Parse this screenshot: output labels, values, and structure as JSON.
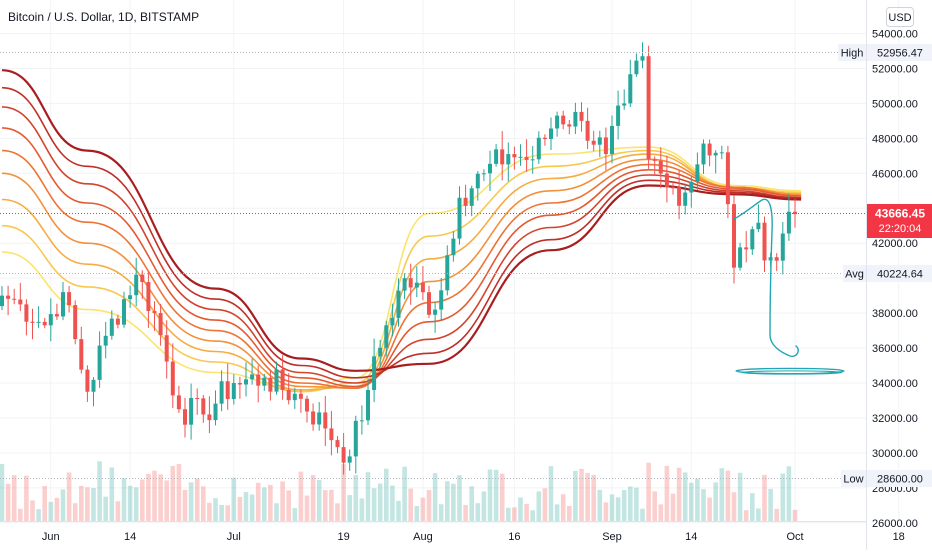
{
  "header": {
    "title": "Bitcoin / U.S. Dollar, 1D, BITSTAMP"
  },
  "currency_button": {
    "label": "USD"
  },
  "price_axis": {
    "ticks": [
      "54000.00",
      "52000.00",
      "50000.00",
      "48000.00",
      "46000.00",
      "44000.00",
      "42000.00",
      "40000.00",
      "38000.00",
      "36000.00",
      "34000.00",
      "32000.00",
      "30000.00",
      "28000.00",
      "26000.00"
    ]
  },
  "time_axis": {
    "labels": [
      "Jun",
      "14",
      "Jul",
      "19",
      "Aug",
      "16",
      "Sep",
      "14",
      "Oct",
      "18"
    ]
  },
  "markers": {
    "high": {
      "label": "High",
      "value": "52956.47"
    },
    "avg": {
      "label": "Avg",
      "value": "40224.64"
    },
    "low": {
      "label": "Low",
      "value": "28600.00"
    },
    "last": {
      "value": "43666.45",
      "countdown": "22:20:04"
    }
  },
  "colors": {
    "up": "#26a69a",
    "down": "#ef5350",
    "last_price": "#f23645",
    "drawing": "#22a6b3",
    "ribbon": [
      "#fbe46d",
      "#f8c84f",
      "#f6ac43",
      "#f3903b",
      "#ee7436",
      "#e45a32",
      "#d4432d",
      "#c02f27",
      "#a81d20"
    ]
  },
  "chart_data": {
    "type": "candlestick",
    "title": "Bitcoin / U.S. Dollar, 1D, BITSTAMP",
    "currency": "USD",
    "ylim": [
      25000,
      55000
    ],
    "x_range": [
      "2021-05-24",
      "2021-10-22"
    ],
    "x_tick_labels": [
      "Jun",
      "14",
      "Jul",
      "19",
      "Aug",
      "16",
      "Sep",
      "14",
      "Oct",
      "18"
    ],
    "high": 52956.47,
    "average": 40224.64,
    "low": 28600.0,
    "last_price": 43666.45,
    "countdown": "22:20:04",
    "price_anchors": [
      {
        "date": "2021-05-24",
        "close": 39000
      },
      {
        "date": "2021-05-27",
        "close": 38500
      },
      {
        "date": "2021-05-31",
        "close": 37300
      },
      {
        "date": "2021-06-03",
        "close": 39200
      },
      {
        "date": "2021-06-07",
        "close": 33500
      },
      {
        "date": "2021-06-10",
        "close": 36700
      },
      {
        "date": "2021-06-15",
        "close": 40200
      },
      {
        "date": "2021-06-18",
        "close": 38000
      },
      {
        "date": "2021-06-22",
        "close": 32500
      },
      {
        "date": "2021-06-26",
        "close": 32200
      },
      {
        "date": "2021-07-01",
        "close": 34000
      },
      {
        "date": "2021-07-06",
        "close": 34300
      },
      {
        "date": "2021-07-12",
        "close": 33100
      },
      {
        "date": "2021-07-16",
        "close": 31400
      },
      {
        "date": "2021-07-20",
        "close": 29800
      },
      {
        "date": "2021-07-23",
        "close": 33600
      },
      {
        "date": "2021-07-26",
        "close": 37300
      },
      {
        "date": "2021-07-29",
        "close": 40000
      },
      {
        "date": "2021-08-03",
        "close": 38200
      },
      {
        "date": "2021-08-07",
        "close": 44600
      },
      {
        "date": "2021-08-11",
        "close": 46000
      },
      {
        "date": "2021-08-15",
        "close": 47100
      },
      {
        "date": "2021-08-19",
        "close": 46800
      },
      {
        "date": "2021-08-23",
        "close": 49300
      },
      {
        "date": "2021-08-27",
        "close": 49000
      },
      {
        "date": "2021-08-31",
        "close": 47100
      },
      {
        "date": "2021-09-03",
        "close": 50000
      },
      {
        "date": "2021-09-06",
        "close": 52700
      },
      {
        "date": "2021-09-07",
        "close": 46800
      },
      {
        "date": "2021-09-10",
        "close": 45200
      },
      {
        "date": "2021-09-13",
        "close": 44900
      },
      {
        "date": "2021-09-16",
        "close": 47700
      },
      {
        "date": "2021-09-19",
        "close": 47200
      },
      {
        "date": "2021-09-21",
        "close": 40600
      },
      {
        "date": "2021-09-24",
        "close": 42800
      },
      {
        "date": "2021-09-28",
        "close": 41000
      },
      {
        "date": "2021-09-30",
        "close": 43800
      },
      {
        "date": "2021-10-01",
        "close": 43666
      }
    ],
    "series": [
      {
        "values": [
          41500,
          38200,
          34600,
          33600,
          34300,
          43700,
          47100,
          47500,
          45300,
          45000
        ]
      },
      {
        "values": [
          43000,
          39500,
          35200,
          33500,
          34000,
          42400,
          46400,
          47300,
          45200,
          44900
        ]
      },
      {
        "values": [
          44500,
          40800,
          35800,
          33600,
          33800,
          41100,
          45700,
          47100,
          45200,
          44800
        ]
      },
      {
        "values": [
          46000,
          42000,
          36400,
          33800,
          33700,
          39800,
          45000,
          46800,
          45200,
          44800
        ]
      },
      {
        "values": [
          47300,
          43200,
          37000,
          34000,
          33700,
          38600,
          44300,
          46500,
          45200,
          44700
        ]
      },
      {
        "values": [
          48600,
          44300,
          37600,
          34300,
          33800,
          37500,
          43600,
          46200,
          45100,
          44700
        ]
      },
      {
        "values": [
          49800,
          45400,
          38200,
          34600,
          34000,
          36500,
          42900,
          45900,
          45000,
          44600
        ]
      },
      {
        "values": [
          50900,
          46400,
          38800,
          35000,
          34300,
          35700,
          42200,
          45600,
          44900,
          44600
        ]
      },
      {
        "values": [
          51900,
          47300,
          39400,
          35400,
          34700,
          35100,
          41600,
          45300,
          44800,
          44500
        ]
      }
    ],
    "series_x": [
      "2021-05-24",
      "2021-06-07",
      "2021-06-28",
      "2021-07-12",
      "2021-07-21",
      "2021-08-02",
      "2021-08-22",
      "2021-09-07",
      "2021-09-21",
      "2021-10-02"
    ]
  }
}
